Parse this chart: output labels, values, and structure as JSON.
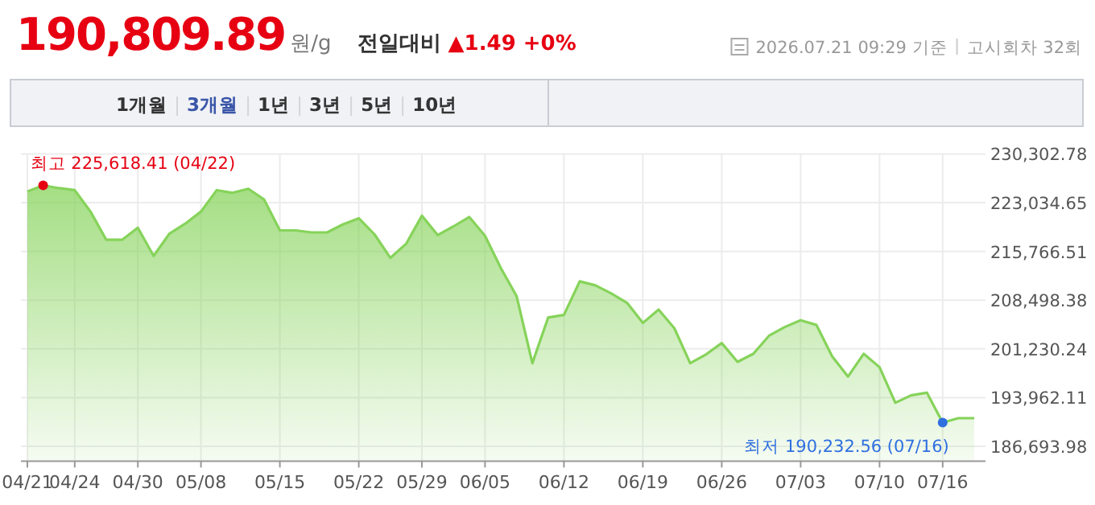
{
  "chart_data": {
    "type": "area",
    "title": "190,809.89",
    "ylabel": "원/g",
    "subtitle": "**전일대비** ▲1.49 +0%",
    "annotations": [
      "2026.07.21 09:29 기준",
      "고시회차 32회",
      "1개월",
      "3개월",
      "1년",
      "3년",
      "5년",
      "10년",
      "최고 225,618.41 (04/22)",
      "최저 190,232.56 (07/16)"
    ],
    "categories": [
      "04/21",
      null,
      null,
      "04/24",
      null,
      null,
      null,
      "04/30",
      null,
      null,
      null,
      "05/08",
      null,
      null,
      null,
      null,
      "05/15",
      null,
      null,
      null,
      null,
      "05/22",
      null,
      null,
      null,
      "05/29",
      null,
      null,
      null,
      "06/05",
      null,
      null,
      null,
      null,
      "06/12",
      null,
      null,
      null,
      null,
      "06/19",
      null,
      null,
      null,
      null,
      "06/26",
      null,
      null,
      null,
      null,
      "07/03",
      null,
      null,
      null,
      null,
      "07/10",
      null,
      null,
      null,
      "07/16",
      null,
      null
    ],
    "series": [
      {
        "color": "#86d35a",
        "values": [
          224700,
          225618.41,
          225200,
          224900,
          221700,
          217500,
          217500,
          219300,
          215100,
          218400,
          219900,
          221700,
          224900,
          224500,
          225100,
          223500,
          218900,
          218900,
          218600,
          218600,
          219800,
          220700,
          218300,
          214800,
          216900,
          221100,
          218200,
          219500,
          220900,
          218100,
          213300,
          209100,
          199100,
          205900,
          206300,
          211300,
          210700,
          209500,
          208100,
          205100,
          207100,
          204300,
          199100,
          200400,
          202100,
          199300,
          200500,
          203200,
          204500,
          205500,
          204800,
          200100,
          197100,
          200500,
          198500,
          193200,
          194300,
          194700,
          190232.56,
          190900,
          190900
        ]
      }
    ],
    "ylim": [
      184500,
      230302.78
    ],
    "yticks": [
      {
        "value": 230302.78,
        "label": "230,302.78"
      },
      {
        "value": 223034.65,
        "label": "223,034.65"
      },
      {
        "value": 215766.51,
        "label": "215,766.51"
      },
      {
        "value": 208498.38,
        "label": "208,498.38"
      },
      {
        "value": 201230.24,
        "label": "201,230.24"
      },
      {
        "value": 193962.11,
        "label": "193,962.11"
      },
      {
        "value": 186693.98,
        "label": "186,693.98"
      }
    ],
    "grid": true,
    "marker": "none",
    "line_style": "solid"
  }
}
